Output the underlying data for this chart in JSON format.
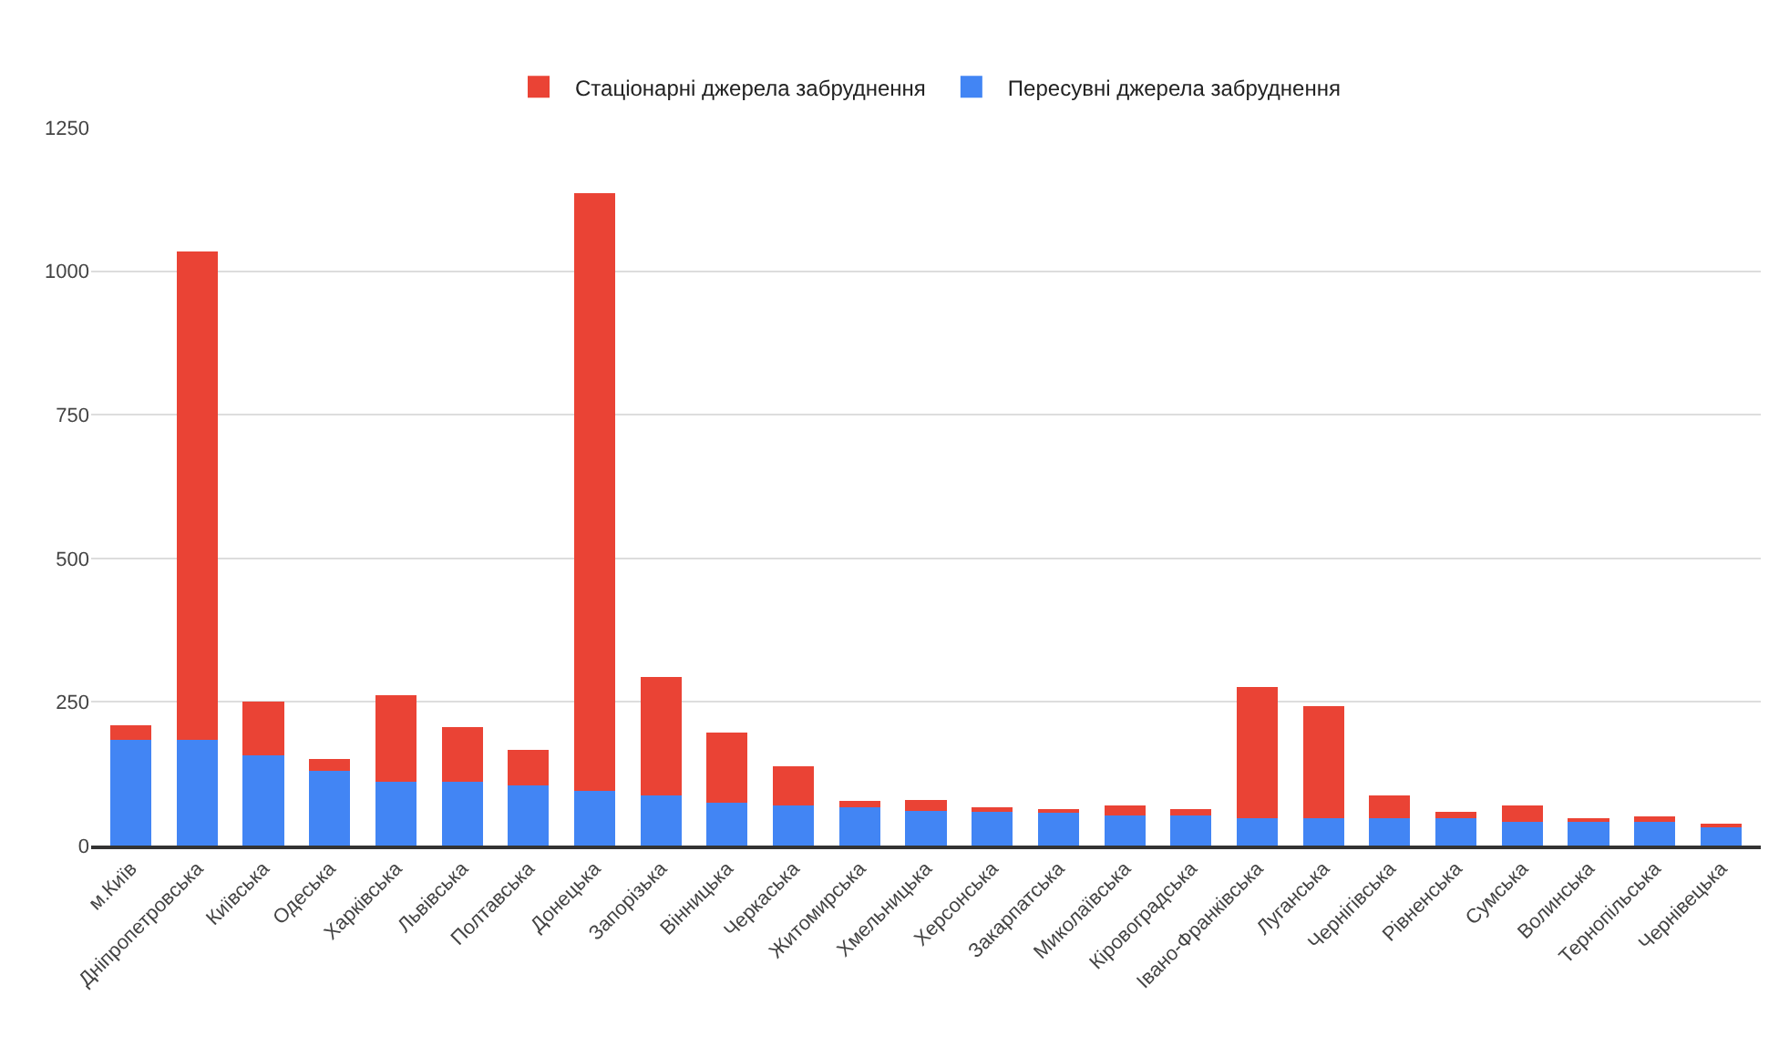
{
  "chart_data": {
    "type": "bar",
    "stacked": true,
    "categories": [
      "м.Київ",
      "Дніпропетровська",
      "Київська",
      "Одеська",
      "Харківська",
      "Львівська",
      "Полтавська",
      "Донецька",
      "Запорізька",
      "Вінницька",
      "Черкаська",
      "Житомирська",
      "Хмельницька",
      "Херсонська",
      "Закарпатська",
      "Миколаївська",
      "Кіровоградська",
      "Івано-Франківська",
      "Луганська",
      "Чернігівська",
      "Рівненська",
      "Сумська",
      "Волинська",
      "Тернопільська",
      "Чернівецька"
    ],
    "series": [
      {
        "name": "Пересувні джерела забруднення",
        "color": "#4285f4",
        "values": [
          184,
          184,
          157,
          130,
          111,
          111,
          104,
          95,
          87,
          74,
          70,
          66,
          61,
          59,
          58,
          53,
          53,
          47,
          47,
          47,
          47,
          42,
          43,
          44,
          34
        ]
      },
      {
        "name": "Стаціонарні джерела забруднення",
        "color": "#ea4335",
        "values": [
          26,
          850,
          93,
          20,
          150,
          96,
          62,
          1041,
          207,
          123,
          68,
          11,
          19,
          7,
          3,
          17,
          11,
          229,
          196,
          41,
          11,
          28,
          5,
          6,
          1
        ]
      }
    ],
    "ylim": [
      0,
      1250
    ],
    "yticks": [
      0,
      250,
      500,
      750,
      1000,
      1250
    ],
    "grid": "y",
    "legend": "top"
  }
}
